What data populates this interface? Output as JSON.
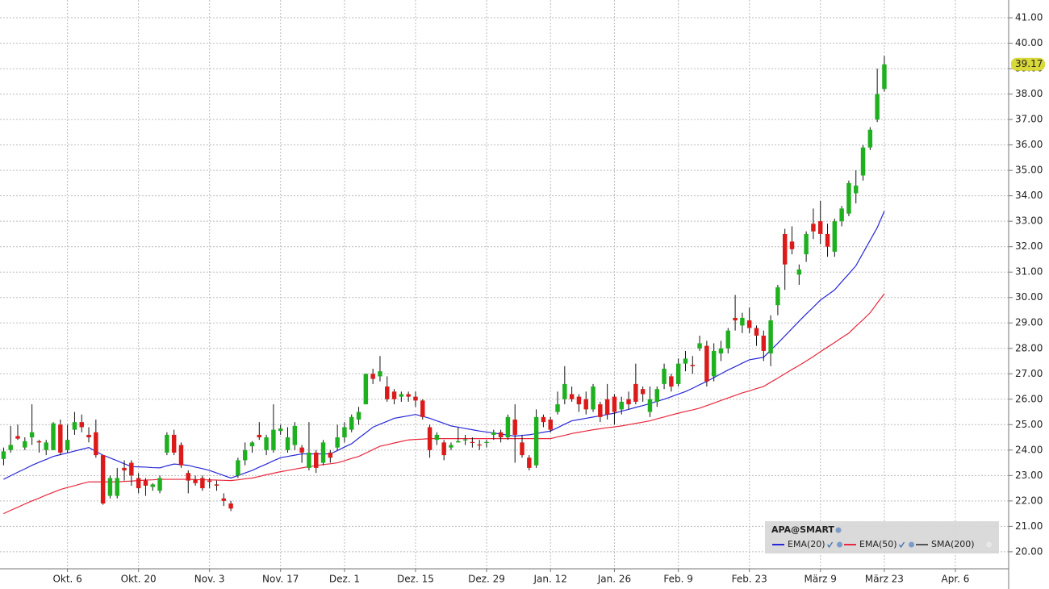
{
  "chart_data": {
    "type": "candlestick",
    "symbol": "APA@SMART",
    "categories": [
      null,
      null,
      null,
      null,
      null,
      null,
      null,
      null,
      null,
      "Okt. 6",
      null,
      null,
      null,
      null,
      null,
      null,
      null,
      null,
      null,
      "Okt. 20",
      null,
      null,
      null,
      null,
      null,
      null,
      null,
      null,
      null,
      "Nov. 3",
      null,
      null,
      null,
      null,
      null,
      null,
      null,
      null,
      null,
      "Nov. 17",
      null,
      null,
      null,
      null,
      null,
      null,
      null,
      null,
      "Dez. 1",
      null,
      null,
      null,
      null,
      null,
      null,
      null,
      null,
      null,
      "Dez. 15",
      null,
      null,
      null,
      null,
      null,
      null,
      null,
      null,
      null,
      "Dez. 29",
      null,
      null,
      null,
      null,
      null,
      null,
      null,
      null,
      "Jan. 12",
      null,
      null,
      null,
      null,
      null,
      null,
      null,
      null,
      "Jan. 26",
      null,
      null,
      null,
      null,
      null,
      null,
      null,
      null,
      "Feb. 9",
      null,
      null,
      null,
      null,
      null,
      null,
      null,
      null,
      null,
      "Feb. 23",
      null,
      null,
      null,
      null,
      null,
      null,
      null,
      null,
      null,
      "März 9",
      null,
      null,
      null,
      null,
      null,
      null,
      null,
      null,
      "März 23",
      null,
      null,
      null,
      null,
      null,
      null,
      null,
      null,
      null,
      "Apr. 6",
      null,
      null,
      null,
      null,
      null,
      null,
      null
    ],
    "open": [
      23.65,
      24.0,
      24.55,
      24.1,
      24.5,
      24.35,
      24.0,
      24.0,
      25.0,
      24.0,
      24.8,
      25.1,
      24.6,
      24.7,
      23.8,
      22.2,
      22.2,
      23.3,
      23.5,
      22.9,
      22.8,
      22.55,
      22.4,
      23.9,
      24.6,
      24.2,
      23.1,
      22.85,
      22.9,
      22.8,
      22.65,
      22.1,
      21.9,
      23.0,
      23.6,
      24.15,
      24.6,
      24.0,
      24.0,
      24.75,
      24.0,
      24.2,
      24.1,
      23.3,
      23.9,
      23.5,
      23.9,
      24.1,
      24.5,
      24.8,
      25.2,
      25.8,
      27.0,
      26.9,
      26.5,
      26.3,
      26.1,
      26.2,
      26.1,
      25.95,
      24.9,
      24.4,
      24.3,
      24.1,
      24.3,
      24.38,
      24.32,
      24.22,
      24.28,
      24.6,
      24.7,
      24.5,
      25.2,
      24.3,
      23.7,
      23.4,
      25.3,
      25.2,
      25.5,
      26.0,
      26.2,
      26.1,
      26.0,
      25.6,
      25.8,
      26.0,
      26.1,
      25.6,
      26.0,
      26.6,
      26.4,
      25.5,
      25.9,
      26.6,
      26.9,
      26.6,
      27.4,
      27.35,
      28.0,
      28.1,
      26.9,
      27.8,
      28.0,
      29.2,
      28.9,
      29.1,
      28.8,
      28.5,
      27.8,
      29.7,
      32.5,
      32.2,
      30.9,
      31.7,
      32.9,
      33.0,
      32.5,
      31.8,
      33.0,
      33.3,
      34.1,
      34.8,
      35.9,
      37.0,
      38.2,
      null,
      null,
      null,
      null,
      null,
      null,
      null,
      null,
      null,
      null,
      null,
      null,
      null,
      null,
      null,
      null,
      null
    ],
    "high": [
      24.1,
      24.95,
      25.0,
      24.5,
      25.8,
      24.4,
      24.4,
      25.1,
      25.2,
      25.0,
      25.5,
      25.4,
      24.9,
      25.2,
      23.8,
      23.0,
      23.3,
      23.6,
      23.6,
      23.1,
      22.9,
      22.7,
      23.0,
      24.7,
      24.8,
      24.3,
      23.2,
      23.0,
      23.0,
      22.9,
      22.8,
      22.3,
      22.0,
      23.7,
      24.3,
      24.35,
      25.1,
      24.6,
      25.8,
      25.0,
      24.9,
      25.1,
      24.2,
      25.1,
      24.0,
      24.4,
      24.0,
      25.0,
      25.1,
      25.4,
      25.7,
      27.0,
      27.2,
      27.7,
      26.9,
      26.4,
      26.3,
      26.3,
      26.3,
      26.0,
      25.0,
      24.7,
      24.4,
      24.3,
      24.9,
      24.6,
      24.5,
      24.4,
      24.4,
      24.8,
      24.8,
      25.4,
      25.8,
      24.6,
      23.8,
      25.6,
      25.4,
      25.3,
      26.3,
      27.3,
      26.5,
      26.2,
      26.3,
      26.6,
      25.9,
      26.6,
      26.2,
      26.1,
      26.3,
      27.4,
      26.5,
      26.5,
      26.5,
      27.4,
      27.0,
      27.6,
      27.9,
      27.7,
      28.5,
      28.3,
      28.2,
      28.3,
      28.8,
      30.1,
      29.4,
      29.6,
      28.9,
      28.7,
      29.3,
      30.5,
      32.7,
      32.8,
      31.3,
      32.6,
      33.5,
      33.8,
      32.9,
      33.1,
      33.6,
      34.6,
      35.0,
      36.0,
      36.7,
      39.0,
      39.5,
      null,
      null,
      null,
      null,
      null,
      null,
      null,
      null,
      null,
      null,
      null,
      null,
      null,
      null,
      null,
      null,
      null
    ],
    "low": [
      23.4,
      23.9,
      24.4,
      24.0,
      24.2,
      23.9,
      23.8,
      24.0,
      23.8,
      23.9,
      24.6,
      24.7,
      24.3,
      23.7,
      21.85,
      22.1,
      22.1,
      22.8,
      22.6,
      22.3,
      22.2,
      22.4,
      22.3,
      23.8,
      23.8,
      23.3,
      22.3,
      22.6,
      22.4,
      22.5,
      22.4,
      21.8,
      21.6,
      22.9,
      23.4,
      23.9,
      24.4,
      23.8,
      23.9,
      24.6,
      23.9,
      24.0,
      23.5,
      23.2,
      23.1,
      23.4,
      23.5,
      24.0,
      24.3,
      24.7,
      25.0,
      25.8,
      26.6,
      26.7,
      25.9,
      25.8,
      25.9,
      25.9,
      25.7,
      25.2,
      23.7,
      24.2,
      23.6,
      24.0,
      24.3,
      24.2,
      24.1,
      24.0,
      24.1,
      24.4,
      24.3,
      24.4,
      23.5,
      23.7,
      23.2,
      23.3,
      24.9,
      24.7,
      25.4,
      25.8,
      25.9,
      25.5,
      25.4,
      25.5,
      25.1,
      25.2,
      25.0,
      25.4,
      25.6,
      25.8,
      25.9,
      25.3,
      25.7,
      26.4,
      26.3,
      26.5,
      27.1,
      27.0,
      27.9,
      26.5,
      26.7,
      27.5,
      27.8,
      28.7,
      28.6,
      28.6,
      28.1,
      27.5,
      27.3,
      29.3,
      30.3,
      31.7,
      30.5,
      31.4,
      32.3,
      32.1,
      31.6,
      31.6,
      32.8,
      33.2,
      33.7,
      34.6,
      35.8,
      36.9,
      38.1,
      null,
      null,
      null,
      null,
      null,
      null,
      null,
      null,
      null,
      null,
      null,
      null,
      null,
      null,
      null,
      null,
      null
    ],
    "close": [
      23.95,
      24.2,
      24.45,
      24.35,
      24.7,
      24.3,
      24.3,
      25.05,
      23.9,
      24.4,
      25.1,
      24.9,
      24.5,
      23.8,
      21.9,
      22.9,
      22.9,
      23.2,
      23.0,
      22.5,
      22.6,
      22.65,
      22.9,
      24.6,
      23.9,
      23.4,
      22.8,
      22.7,
      22.5,
      22.75,
      22.6,
      22.0,
      21.7,
      23.6,
      24.0,
      24.3,
      24.5,
      24.5,
      24.8,
      24.85,
      24.5,
      24.95,
      23.9,
      23.9,
      23.3,
      24.3,
      23.7,
      24.5,
      24.9,
      25.3,
      25.5,
      27.0,
      26.8,
      27.1,
      26.0,
      26.0,
      26.2,
      26.1,
      25.95,
      25.3,
      24.0,
      24.6,
      23.8,
      24.2,
      24.35,
      24.42,
      24.28,
      24.18,
      24.32,
      24.7,
      24.5,
      25.3,
      24.6,
      23.8,
      23.3,
      25.3,
      25.1,
      24.8,
      25.8,
      26.6,
      26.0,
      25.8,
      25.6,
      26.5,
      25.3,
      25.4,
      25.5,
      25.9,
      25.8,
      25.9,
      26.2,
      26.0,
      26.4,
      27.2,
      26.5,
      27.4,
      27.6,
      27.3,
      28.2,
      26.7,
      27.9,
      28.0,
      28.7,
      29.1,
      29.2,
      28.8,
      28.5,
      27.9,
      29.1,
      30.4,
      31.3,
      31.9,
      31.1,
      32.5,
      32.6,
      32.5,
      32.0,
      33.0,
      33.5,
      34.5,
      34.4,
      35.9,
      36.6,
      38.0,
      39.17,
      null,
      null,
      null,
      null,
      null,
      null,
      null,
      null,
      null,
      null,
      null,
      null,
      null,
      null,
      null,
      null,
      null
    ],
    "up_color": "#1fb01f",
    "down_color": "#dd1a1a",
    "series": [
      {
        "name": "EMA(20)",
        "color": "#2828d8",
        "values": [
          22.85,
          22.99,
          23.13,
          23.26,
          23.4,
          23.52,
          23.63,
          23.75,
          23.82,
          23.89,
          23.96,
          24.03,
          24.1,
          23.95,
          23.8,
          23.69,
          23.58,
          23.46,
          23.35,
          23.34,
          23.33,
          23.31,
          23.3,
          23.38,
          23.45,
          23.43,
          23.4,
          23.33,
          23.27,
          23.2,
          23.1,
          23.0,
          22.9,
          23.0,
          23.1,
          23.2,
          23.33,
          23.45,
          23.58,
          23.7,
          23.75,
          23.8,
          23.85,
          23.85,
          23.85,
          23.85,
          23.85,
          23.98,
          24.12,
          24.25,
          24.47,
          24.68,
          24.9,
          25.02,
          25.13,
          25.25,
          25.3,
          25.35,
          25.4,
          25.33,
          25.25,
          25.15,
          25.05,
          24.95,
          24.9,
          24.85,
          24.8,
          24.75,
          24.71,
          24.67,
          24.63,
          24.59,
          24.55,
          24.58,
          24.6,
          24.65,
          24.7,
          24.75,
          24.88,
          25.02,
          25.15,
          25.2,
          25.25,
          25.3,
          25.35,
          25.4,
          25.45,
          25.53,
          25.6,
          25.68,
          25.75,
          25.83,
          25.92,
          26.0,
          26.1,
          26.2,
          26.3,
          26.43,
          26.57,
          26.7,
          26.85,
          27.0,
          27.15,
          27.28,
          27.42,
          27.55,
          27.6,
          27.65,
          27.93,
          28.2,
          28.49,
          28.78,
          29.07,
          29.35,
          29.62,
          29.9,
          30.1,
          30.3,
          30.62,
          30.93,
          31.25,
          31.75,
          32.25,
          32.75,
          33.4,
          null,
          null,
          null,
          null,
          null,
          null,
          null,
          null,
          null,
          null,
          null,
          null,
          null,
          null,
          null,
          null,
          null
        ]
      },
      {
        "name": "EMA(50)",
        "color": "#e8283c",
        "values": [
          21.5,
          21.63,
          21.75,
          21.88,
          22.0,
          22.11,
          22.23,
          22.34,
          22.45,
          22.53,
          22.6,
          22.68,
          22.75,
          22.75,
          22.75,
          22.75,
          22.75,
          22.77,
          22.78,
          22.8,
          22.82,
          22.83,
          22.85,
          22.85,
          22.85,
          22.85,
          22.85,
          22.84,
          22.83,
          22.83,
          22.82,
          22.81,
          22.8,
          22.83,
          22.87,
          22.9,
          22.96,
          23.03,
          23.09,
          23.15,
          23.2,
          23.25,
          23.3,
          23.35,
          23.39,
          23.43,
          23.46,
          23.5,
          23.58,
          23.67,
          23.75,
          23.88,
          24.02,
          24.15,
          24.21,
          24.28,
          24.34,
          24.4,
          24.42,
          24.43,
          24.45,
          24.45,
          24.45,
          24.45,
          24.45,
          24.45,
          24.45,
          24.45,
          24.45,
          24.45,
          24.45,
          24.45,
          24.45,
          24.45,
          24.45,
          24.45,
          24.45,
          24.45,
          24.52,
          24.58,
          24.65,
          24.7,
          24.75,
          24.8,
          24.84,
          24.88,
          24.91,
          24.95,
          25.0,
          25.05,
          25.1,
          25.15,
          25.23,
          25.3,
          25.38,
          25.45,
          25.52,
          25.58,
          25.65,
          25.75,
          25.85,
          25.95,
          26.05,
          26.15,
          26.25,
          26.33,
          26.42,
          26.5,
          26.67,
          26.83,
          27.0,
          27.17,
          27.33,
          27.5,
          27.68,
          27.87,
          28.05,
          28.23,
          28.42,
          28.6,
          28.87,
          29.13,
          29.4,
          29.78,
          30.15,
          null,
          null,
          null,
          null,
          null,
          null,
          null,
          null,
          null,
          null,
          null,
          null,
          null,
          null,
          null,
          null,
          null
        ]
      },
      {
        "name": "SMA(200)",
        "color": "#555555"
      }
    ],
    "ylim": [
      19.33,
      41.7
    ],
    "yticks": [
      {
        "value": 20,
        "label": "20.00"
      },
      {
        "value": 21,
        "label": "21.00"
      },
      {
        "value": 22,
        "label": "22.00"
      },
      {
        "value": 23,
        "label": "23.00"
      },
      {
        "value": 24,
        "label": "24.00"
      },
      {
        "value": 25,
        "label": "25.00"
      },
      {
        "value": 26,
        "label": "26.00"
      },
      {
        "value": 27,
        "label": "27.00"
      },
      {
        "value": 28,
        "label": "28.00"
      },
      {
        "value": 29,
        "label": "29.00"
      },
      {
        "value": 30,
        "label": "30.00"
      },
      {
        "value": 31,
        "label": "31.00"
      },
      {
        "value": 32,
        "label": "32.00"
      },
      {
        "value": 33,
        "label": "33.00"
      },
      {
        "value": 34,
        "label": "34.00"
      },
      {
        "value": 35,
        "label": "35.00"
      },
      {
        "value": 36,
        "label": "36.00"
      },
      {
        "value": 37,
        "label": "37.00"
      },
      {
        "value": 38,
        "label": "38.00"
      },
      {
        "value": 39,
        "label": "39.00"
      },
      {
        "value": 40,
        "label": "40.00"
      },
      {
        "value": 41,
        "label": "41.00"
      }
    ],
    "grid": true,
    "legend": "bottom-right"
  }
}
